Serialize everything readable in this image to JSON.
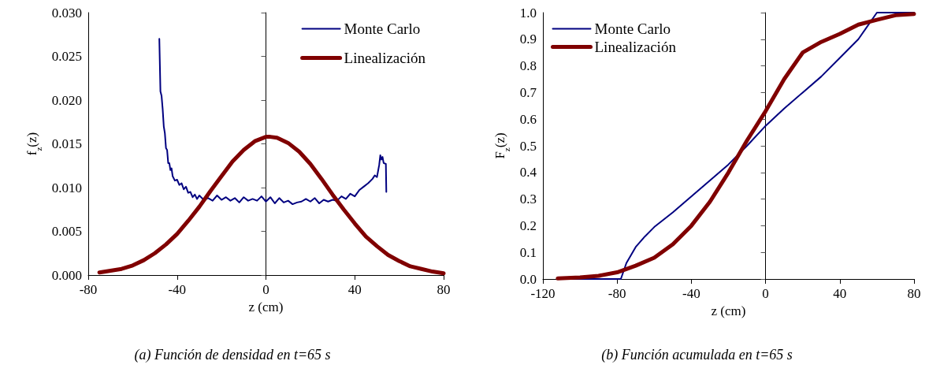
{
  "chart_data": [
    {
      "type": "line",
      "title": "(a) Función de densidad en t=65 s",
      "xlabel": "z (cm)",
      "ylabel": "f$_{z}$(z)",
      "xlim": [
        -80,
        80
      ],
      "xticks": [
        -80,
        -40,
        0,
        40,
        80
      ],
      "ylim": [
        0,
        0.03
      ],
      "yticks": [
        {
          "value": 0,
          "label": "0.000"
        },
        {
          "value": 0.005,
          "label": "0.005"
        },
        {
          "value": 0.01,
          "label": "0.010"
        },
        {
          "value": 0.015,
          "label": "0.015"
        },
        {
          "value": 0.02,
          "label": "0.020"
        },
        {
          "value": 0.025,
          "label": "0.025"
        },
        {
          "value": 0.03,
          "label": "0.030"
        }
      ],
      "legend": "top right",
      "marker": "none",
      "line_style": "solid",
      "series": [
        {
          "name": "Monte Carlo",
          "color": "#000080",
          "x": [
            -48,
            -47.5,
            -47,
            -46.5,
            -46,
            -45.5,
            -45,
            -44.5,
            -44,
            -43.5,
            -43,
            -42.5,
            -42,
            -41,
            -40,
            -39,
            -38,
            -37,
            -36,
            -35,
            -34,
            -33,
            -32,
            -31,
            -30,
            -28,
            -26,
            -24,
            -22,
            -20,
            -18,
            -16,
            -14,
            -12,
            -10,
            -8,
            -6,
            -4,
            -2,
            0,
            2,
            4,
            6,
            8,
            10,
            12,
            14,
            16,
            18,
            20,
            22,
            24,
            26,
            28,
            30,
            32,
            34,
            36,
            38,
            40,
            42,
            44,
            46,
            48,
            49,
            50,
            51,
            51.5,
            52,
            52.5,
            53,
            54,
            54.2
          ],
          "values": [
            0.027,
            0.021,
            0.0205,
            0.019,
            0.017,
            0.0162,
            0.0145,
            0.0143,
            0.0128,
            0.0128,
            0.012,
            0.0122,
            0.0113,
            0.0108,
            0.0109,
            0.0103,
            0.0105,
            0.0098,
            0.0101,
            0.0094,
            0.0095,
            0.0089,
            0.0092,
            0.0087,
            0.0091,
            0.0086,
            0.0088,
            0.0085,
            0.0091,
            0.0086,
            0.0089,
            0.0085,
            0.0088,
            0.0083,
            0.0089,
            0.0085,
            0.0087,
            0.0085,
            0.009,
            0.0084,
            0.0089,
            0.0082,
            0.0088,
            0.0083,
            0.0085,
            0.0081,
            0.0083,
            0.0084,
            0.0087,
            0.0084,
            0.0088,
            0.0082,
            0.0086,
            0.0084,
            0.0086,
            0.0085,
            0.009,
            0.0087,
            0.0093,
            0.009,
            0.0097,
            0.0101,
            0.0105,
            0.011,
            0.0114,
            0.0112,
            0.0126,
            0.0137,
            0.0132,
            0.0135,
            0.0128,
            0.0127,
            0.0095
          ]
        },
        {
          "name": "Linealización",
          "color": "#800000",
          "x": [
            -75,
            -70,
            -65,
            -60,
            -55,
            -50,
            -45,
            -40,
            -35,
            -30,
            -25,
            -20,
            -15,
            -10,
            -5,
            0,
            2,
            5,
            10,
            15,
            20,
            25,
            30,
            35,
            40,
            45,
            50,
            55,
            60,
            65,
            70,
            75,
            80
          ],
          "values": [
            0.0003,
            0.0005,
            0.0007,
            0.0011,
            0.0017,
            0.0025,
            0.0035,
            0.0047,
            0.0062,
            0.0078,
            0.0096,
            0.0113,
            0.013,
            0.0143,
            0.0153,
            0.0158,
            0.0158,
            0.0157,
            0.0151,
            0.0141,
            0.0127,
            0.011,
            0.0092,
            0.0075,
            0.0059,
            0.0044,
            0.0033,
            0.0023,
            0.0016,
            0.001,
            0.0007,
            0.0004,
            0.0002
          ]
        }
      ]
    },
    {
      "type": "line",
      "title": "(b) Función acumulada en t=65 s",
      "xlabel": "z (cm)",
      "ylabel": "F$_{z}$(z)",
      "xlim": [
        -120,
        80
      ],
      "xticks": [
        -120,
        -80,
        -40,
        0,
        40,
        80
      ],
      "ylim": [
        0,
        1
      ],
      "yticks": [
        {
          "value": 0,
          "label": "0.0"
        },
        {
          "value": 0.1,
          "label": "0.1"
        },
        {
          "value": 0.2,
          "label": "0.2"
        },
        {
          "value": 0.3,
          "label": "0.3"
        },
        {
          "value": 0.4,
          "label": "0.4"
        },
        {
          "value": 0.5,
          "label": "0.5"
        },
        {
          "value": 0.6,
          "label": "0.6"
        },
        {
          "value": 0.7,
          "label": "0.7"
        },
        {
          "value": 0.8,
          "label": "0.8"
        },
        {
          "value": 0.9,
          "label": "0.9"
        },
        {
          "value": 1,
          "label": "1.0"
        }
      ],
      "legend": "top left",
      "marker": "none",
      "line_style": "solid",
      "series": [
        {
          "name": "Monte Carlo",
          "color": "#000080",
          "x": [
            -112,
            -78,
            -77,
            -75,
            -70,
            -65,
            -60,
            -50,
            -40,
            -30,
            -20,
            -10,
            0,
            10,
            20,
            30,
            40,
            50,
            55,
            60,
            70,
            80
          ],
          "values": [
            0,
            0,
            0.02,
            0.06,
            0.12,
            0.16,
            0.195,
            0.25,
            0.31,
            0.37,
            0.43,
            0.5,
            0.575,
            0.64,
            0.7,
            0.76,
            0.83,
            0.9,
            0.95,
            1,
            1,
            1
          ]
        },
        {
          "name": "Linealización",
          "color": "#800000",
          "x": [
            -112,
            -100,
            -90,
            -80,
            -70,
            -60,
            -50,
            -40,
            -30,
            -20,
            -10,
            0,
            10,
            20,
            30,
            40,
            50,
            60,
            70,
            80
          ],
          "values": [
            0.002,
            0.006,
            0.012,
            0.025,
            0.05,
            0.08,
            0.13,
            0.2,
            0.29,
            0.4,
            0.52,
            0.63,
            0.75,
            0.85,
            0.89,
            0.92,
            0.955,
            0.973,
            0.99,
            0.995
          ]
        }
      ]
    }
  ]
}
